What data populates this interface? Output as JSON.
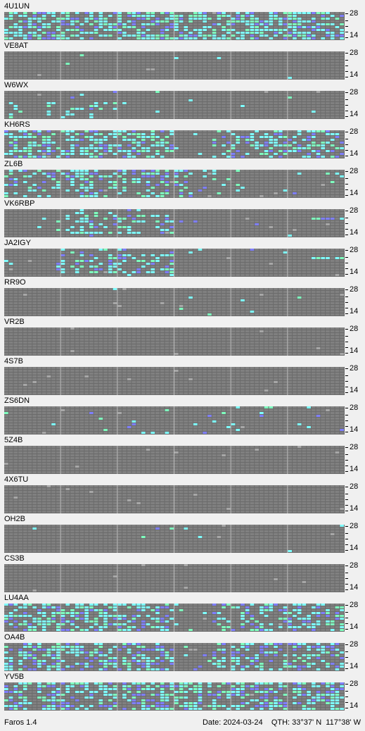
{
  "app_label": "Faros 1.4",
  "status": {
    "date_label": "Date:",
    "date_value": "2024-03-24",
    "qth_label": "QTH:",
    "latitude": "33°37' N",
    "longitude": "117°38' W"
  },
  "axis": {
    "top_label": "28",
    "bottom_label": "14"
  },
  "colors": {
    "background": "#f0f0f0",
    "grid_cell_empty": "#808080",
    "grid_line": "#a0a0a0",
    "cell_gray": "#a8a8a8",
    "cell_blue": "#7f7fff",
    "cell_cyan": "#7fffff",
    "cell_green": "#7fffbf"
  },
  "stations": [
    {
      "callsign": "4U1UN",
      "activity": "high-mixed"
    },
    {
      "callsign": "VE8AT",
      "activity": "very-low"
    },
    {
      "callsign": "W6WX",
      "activity": "low-left"
    },
    {
      "callsign": "KH6RS",
      "activity": "high-split"
    },
    {
      "callsign": "ZL6B",
      "activity": "left-band"
    },
    {
      "callsign": "VK6RBP",
      "activity": "mid-left"
    },
    {
      "callsign": "JA2IGY",
      "activity": "mid-left"
    },
    {
      "callsign": "RR9O",
      "activity": "very-low"
    },
    {
      "callsign": "VR2B",
      "activity": "none"
    },
    {
      "callsign": "4S7B",
      "activity": "none"
    },
    {
      "callsign": "ZS6DN",
      "activity": "sparse"
    },
    {
      "callsign": "5Z4B",
      "activity": "none"
    },
    {
      "callsign": "4X6TU",
      "activity": "none"
    },
    {
      "callsign": "OH2B",
      "activity": "very-low"
    },
    {
      "callsign": "CS3B",
      "activity": "none"
    },
    {
      "callsign": "LU4AA",
      "activity": "high-split"
    },
    {
      "callsign": "OA4B",
      "activity": "high-split"
    },
    {
      "callsign": "YV5B",
      "activity": "high-mixed"
    }
  ]
}
